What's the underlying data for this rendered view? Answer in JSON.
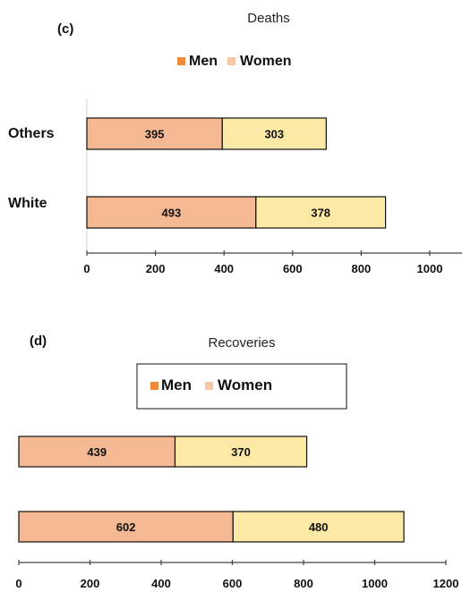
{
  "colors": {
    "men": "#f4b993",
    "women": "#fde9a6",
    "legend_men": "#ef8a3d",
    "legend_women": "#f6c7a6",
    "stroke": "#111111",
    "axis": "#444444"
  },
  "chart_data": [
    {
      "panel": "(c)",
      "type": "bar",
      "orientation": "horizontal",
      "stacked": true,
      "title": "Deaths",
      "categories": [
        "Others",
        "White"
      ],
      "series": [
        {
          "name": "Men",
          "values": [
            395,
            493
          ]
        },
        {
          "name": "Women",
          "values": [
            303,
            378
          ]
        }
      ],
      "xlim": [
        0,
        1000
      ],
      "xticks": [
        "0",
        "200",
        "400",
        "600",
        "800",
        "1000"
      ],
      "legend": "top"
    },
    {
      "panel": "(d)",
      "type": "bar",
      "orientation": "horizontal",
      "stacked": true,
      "title": "Recoveries",
      "categories": [
        "",
        ""
      ],
      "series": [
        {
          "name": "Men",
          "values": [
            439,
            602
          ]
        },
        {
          "name": "Women",
          "values": [
            370,
            480
          ]
        }
      ],
      "xlim": [
        0,
        1200
      ],
      "xticks": [
        "0",
        "200",
        "400",
        "600",
        "800",
        "1000",
        "1200"
      ],
      "legend": "top, boxed"
    }
  ]
}
